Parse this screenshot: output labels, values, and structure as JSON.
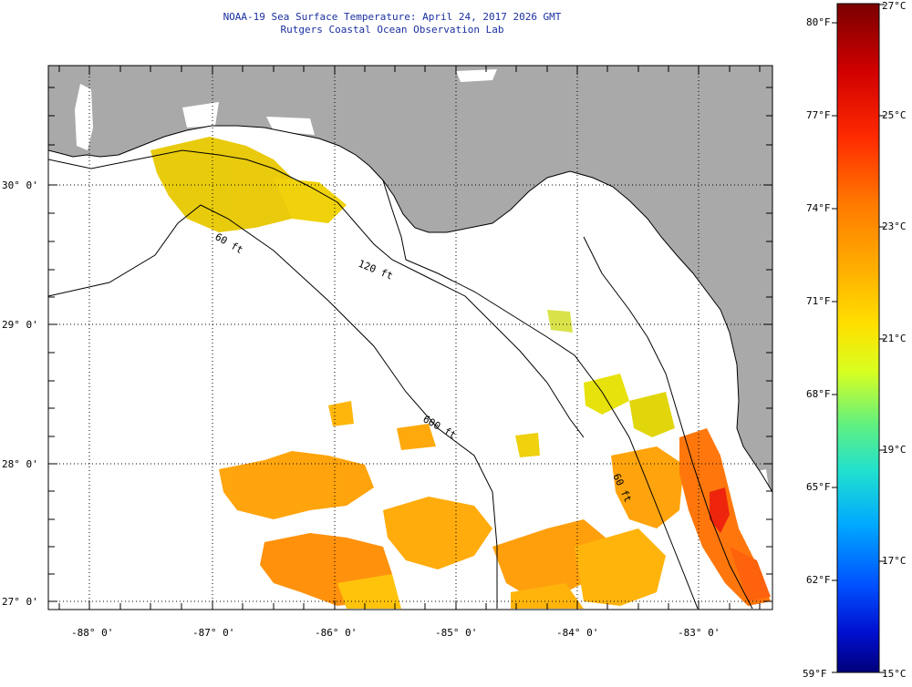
{
  "title": {
    "line1": "NOAA-19 Sea Surface Temperature:  April 24, 2017 2026 GMT",
    "line2": "Rutgers Coastal Ocean Observation Lab"
  },
  "map": {
    "lat_labels": [
      "30° 0'",
      "29° 0'",
      "28° 0'",
      "27° 0'"
    ],
    "lon_labels": [
      "-88° 0'",
      "-87° 0'",
      "-86° 0'",
      "-85° 0'",
      "-84° 0'",
      "-83° 0'"
    ],
    "isobath_labels": [
      "60 ft",
      "120 ft",
      "600 ft",
      "60 ft"
    ],
    "colors": {
      "land": "#a9a9a9",
      "ocean": "#ffffff",
      "grid": "#000000"
    }
  },
  "colorbar": {
    "f_labels": [
      "80°F",
      "77°F",
      "74°F",
      "71°F",
      "68°F",
      "65°F",
      "62°F",
      "59°F"
    ],
    "c_labels": [
      "27°C",
      "25°C",
      "23°C",
      "21°C",
      "19°C",
      "17°C",
      "15°C"
    ],
    "colors": [
      "#7a0000",
      "#e00000",
      "#ff4500",
      "#ff8c00",
      "#ffd000",
      "#e6ff00",
      "#80ff40",
      "#20e0c0",
      "#00b0ff",
      "#0060ff",
      "#0010d0",
      "#00007a"
    ]
  }
}
